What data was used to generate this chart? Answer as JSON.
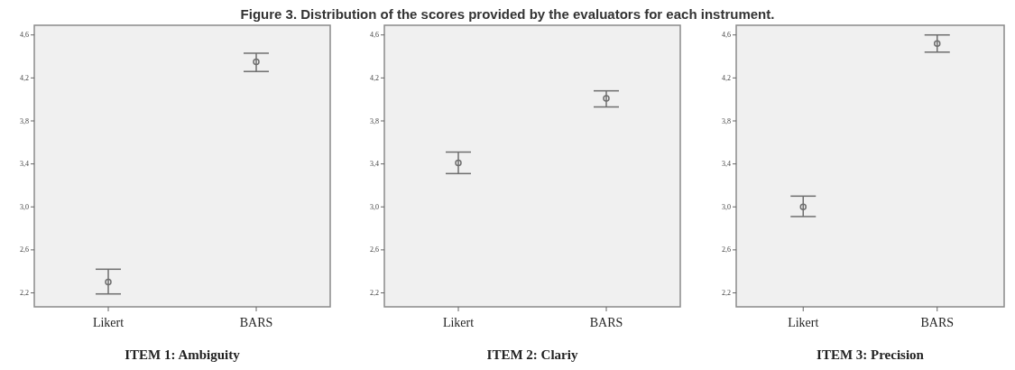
{
  "chart_data": [
    {
      "type": "scatter",
      "title": "Figure 3. Distribution of the scores provided by the evaluators for each instrument.",
      "xlabel": "ITEM 1: Ambiguity",
      "categories": [
        "Likert",
        "BARS"
      ],
      "values": [
        2.3,
        4.35
      ],
      "errors": [
        [
          2.19,
          2.42
        ],
        [
          4.26,
          4.43
        ]
      ],
      "color": "#6e6e6e",
      "marker": "circle",
      "ylim": [
        2.07,
        4.69
      ],
      "yticks": [
        {
          "value": 2.2,
          "label": "2,2"
        },
        {
          "value": 2.6,
          "label": "2,6"
        },
        {
          "value": 3.0,
          "label": "3,0"
        },
        {
          "value": 3.4,
          "label": "3,4"
        },
        {
          "value": 3.8,
          "label": "3,8"
        },
        {
          "value": 4.2,
          "label": "4,2"
        },
        {
          "value": 4.6,
          "label": "4,6"
        }
      ]
    },
    {
      "type": "scatter",
      "xlabel": "ITEM 2: Clariy",
      "categories": [
        "Likert",
        "BARS"
      ],
      "values": [
        3.41,
        4.01
      ],
      "errors": [
        [
          3.31,
          3.51
        ],
        [
          3.93,
          4.08
        ]
      ],
      "color": "#6e6e6e",
      "marker": "circle",
      "ylim": [
        2.07,
        4.69
      ],
      "yticks": [
        {
          "value": 2.2,
          "label": "2,2"
        },
        {
          "value": 2.6,
          "label": "2,6"
        },
        {
          "value": 3.0,
          "label": "3,0"
        },
        {
          "value": 3.4,
          "label": "3,4"
        },
        {
          "value": 3.8,
          "label": "3,8"
        },
        {
          "value": 4.2,
          "label": "4,2"
        },
        {
          "value": 4.6,
          "label": "4,6"
        }
      ]
    },
    {
      "type": "scatter",
      "xlabel": "ITEM 3: Precision",
      "categories": [
        "Likert",
        "BARS"
      ],
      "values": [
        3.0,
        4.52
      ],
      "errors": [
        [
          2.91,
          3.1
        ],
        [
          4.44,
          4.6
        ]
      ],
      "color": "#6e6e6e",
      "marker": "circle",
      "ylim": [
        2.07,
        4.69
      ],
      "yticks": [
        {
          "value": 2.2,
          "label": "2,2"
        },
        {
          "value": 2.6,
          "label": "2,6"
        },
        {
          "value": 3.0,
          "label": "3,0"
        },
        {
          "value": 3.4,
          "label": "3,4"
        },
        {
          "value": 3.8,
          "label": "3,8"
        },
        {
          "value": 4.2,
          "label": "4,2"
        },
        {
          "value": 4.6,
          "label": "4,6"
        }
      ]
    }
  ]
}
